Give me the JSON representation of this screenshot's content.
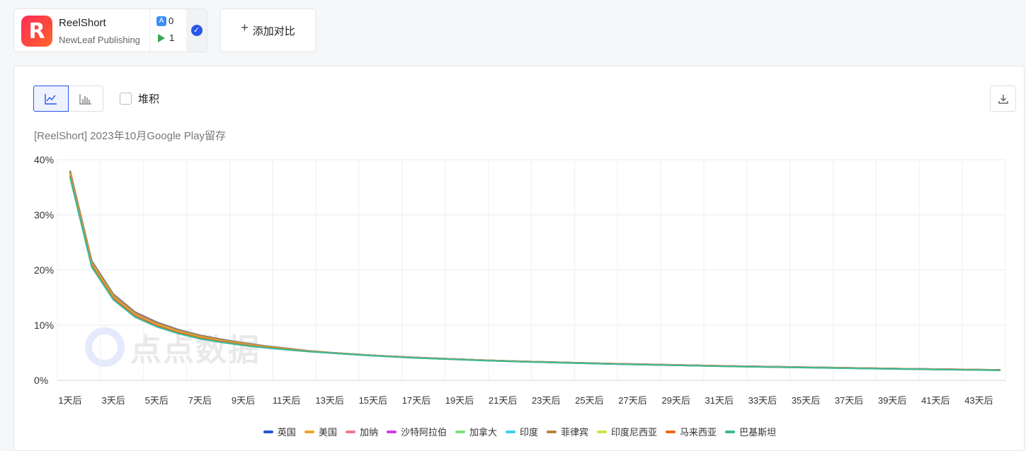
{
  "app": {
    "name": "ReelShort",
    "publisher": "NewLeaf Publishing",
    "logo_letter": "R",
    "ios_count": "0",
    "gp_count": "1",
    "ios_glyph": "A",
    "check_glyph": "✓"
  },
  "add_compare": {
    "plus": "+",
    "label": "添加对比"
  },
  "toolbar": {
    "stack_label": "堆积"
  },
  "watermark": {
    "text": "点点数据"
  },
  "chart_data": {
    "type": "line",
    "title": "[ReelShort]  2023年10月Google Play留存",
    "xlabel": "",
    "ylabel": "",
    "ylim": [
      0,
      40
    ],
    "yticks": [
      "0%",
      "10%",
      "20%",
      "30%",
      "40%"
    ],
    "x": [
      1,
      2,
      3,
      4,
      5,
      6,
      7,
      8,
      9,
      10,
      11,
      12,
      13,
      14,
      15,
      16,
      17,
      18,
      19,
      20,
      21,
      22,
      23,
      24,
      25,
      26,
      27,
      28,
      29,
      30,
      31,
      32,
      33,
      34,
      35,
      36,
      37,
      38,
      39,
      40,
      41,
      42,
      43,
      44
    ],
    "x_tick_labels": [
      "1天后",
      "3天后",
      "5天后",
      "7天后",
      "9天后",
      "11天后",
      "13天后",
      "15天后",
      "17天后",
      "19天后",
      "21天后",
      "23天后",
      "25天后",
      "27天后",
      "29天后",
      "31天后",
      "33天后",
      "35天后",
      "37天后",
      "39天后",
      "41天后",
      "43天后"
    ],
    "grid": true,
    "legend": "bottom",
    "series": [
      {
        "name": "英国",
        "color": "#2457d6",
        "offset": 0.5
      },
      {
        "name": "美国",
        "color": "#f0a32a",
        "offset": -0.6
      },
      {
        "name": "加纳",
        "color": "#ef7a8a",
        "offset": 0.2
      },
      {
        "name": "沙特阿拉伯",
        "color": "#cf3ee6",
        "offset": 0.1
      },
      {
        "name": "加拿大",
        "color": "#7ee07a",
        "offset": -0.2
      },
      {
        "name": "印度",
        "color": "#3fd0ef",
        "offset": -0.4
      },
      {
        "name": "菲律宾",
        "color": "#b8833f",
        "offset": 0.4
      },
      {
        "name": "印度尼西亚",
        "color": "#c9e84a",
        "offset": -0.1
      },
      {
        "name": "马来西亚",
        "color": "#f06a1c",
        "offset": -0.3
      },
      {
        "name": "巴基斯坦",
        "color": "#3bb99a",
        "offset": -0.7
      }
    ],
    "base_values": [
      37.5,
      21.2,
      15.2,
      12.0,
      10.2,
      8.9,
      7.9,
      7.2,
      6.6,
      6.1,
      5.7,
      5.3,
      5.0,
      4.75,
      4.5,
      4.3,
      4.1,
      3.95,
      3.8,
      3.65,
      3.52,
      3.4,
      3.3,
      3.2,
      3.1,
      3.0,
      2.92,
      2.84,
      2.76,
      2.68,
      2.6,
      2.53,
      2.47,
      2.41,
      2.35,
      2.29,
      2.23,
      2.17,
      2.11,
      2.06,
      2.01,
      1.96,
      1.91,
      1.86
    ]
  }
}
